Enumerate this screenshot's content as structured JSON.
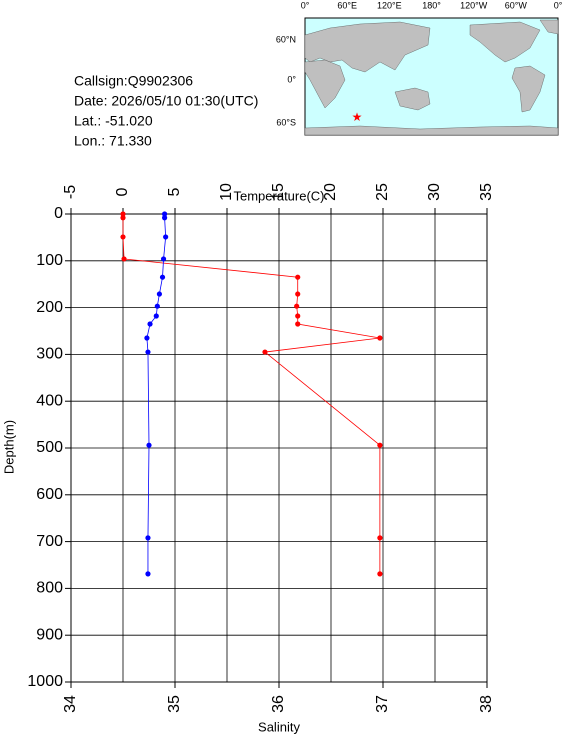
{
  "info": {
    "callsign": "Callsign:Q9902306",
    "date": "Date:  2026/05/10 01:30(UTC)",
    "lat": "Lat.:  -51.020",
    "lon": "Lon.:  71.330"
  },
  "map": {
    "lon_labels": [
      "0°",
      "60°E",
      "120°E",
      "180°",
      "120°W",
      "60°W",
      "0°"
    ],
    "lat_labels": [
      "60°N",
      "0°",
      "60°S"
    ]
  },
  "chart_data": {
    "type": "profile",
    "x_label": "Temperature(C)",
    "x2_label": "Salinity",
    "y_label": "Depth(m)",
    "xlim": [
      -5,
      35
    ],
    "xticks": [
      -5,
      0,
      5,
      10,
      15,
      20,
      25,
      30,
      35
    ],
    "x2lim": [
      34,
      38
    ],
    "x2ticks": [
      34,
      35,
      36,
      37,
      38
    ],
    "ylim": [
      0,
      1000
    ],
    "yticks": [
      0,
      100,
      200,
      300,
      400,
      500,
      600,
      700,
      800,
      900,
      1000
    ],
    "y_inverted": true,
    "grid": true,
    "depth": [
      0,
      8,
      49,
      96,
      135,
      171,
      197,
      218,
      235,
      265,
      295,
      494,
      692,
      769
    ],
    "series": [
      {
        "color": "#ff0000",
        "axis": "x",
        "x": [
          0,
          0,
          0,
          0.1,
          16.8,
          16.8,
          16.7,
          16.8,
          16.8,
          24.7,
          13.65,
          24.7,
          24.7,
          24.7
        ]
      },
      {
        "color": "#0000ff",
        "axis": "x2",
        "x": [
          34.9,
          34.9,
          34.91,
          34.89,
          34.88,
          34.85,
          34.83,
          34.82,
          34.76,
          34.73,
          34.74,
          34.75,
          34.74,
          34.74
        ]
      }
    ]
  }
}
